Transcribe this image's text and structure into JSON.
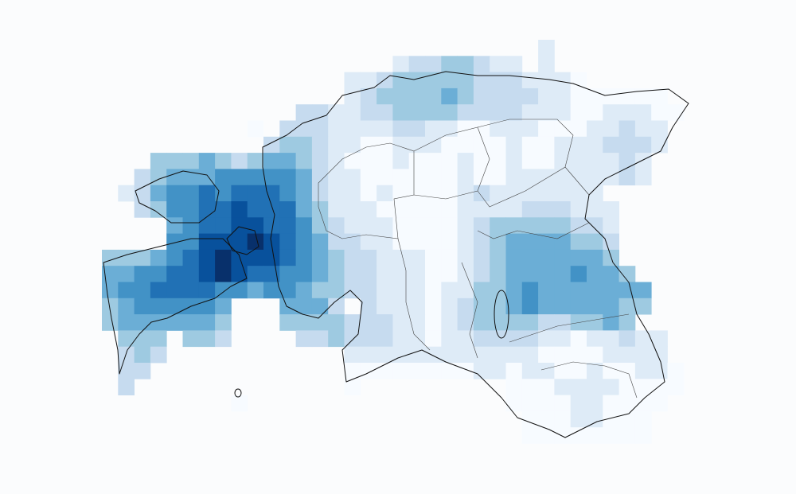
{
  "map": {
    "colors": [
      "#f7fbff",
      "#deebf7",
      "#c6dbef",
      "#9ecae1",
      "#6baed6",
      "#4292c6",
      "#2171b5",
      "#08519c",
      "#08306b"
    ],
    "cells": [
      [
        null,
        null,
        null,
        null,
        null,
        null,
        null,
        null,
        null,
        null,
        null,
        null,
        null,
        null,
        null,
        null,
        null,
        null,
        null,
        null,
        null,
        null,
        null,
        null,
        null,
        null,
        null,
        1
      ],
      [
        null,
        null,
        null,
        null,
        null,
        null,
        null,
        null,
        null,
        null,
        null,
        null,
        null,
        null,
        null,
        null,
        null,
        null,
        1,
        2,
        2,
        3,
        3,
        2,
        1,
        1,
        null,
        1
      ],
      [
        null,
        null,
        null,
        null,
        null,
        null,
        null,
        null,
        null,
        null,
        null,
        null,
        null,
        null,
        null,
        1,
        1,
        2,
        3,
        3,
        3,
        3,
        3,
        2,
        2,
        2,
        1,
        1,
        1,
        0
      ],
      [
        null,
        null,
        null,
        null,
        null,
        null,
        null,
        null,
        null,
        null,
        null,
        null,
        null,
        null,
        null,
        1,
        2,
        3,
        3,
        3,
        3,
        4,
        3,
        2,
        2,
        2,
        2,
        1,
        1,
        0,
        0,
        0,
        0,
        0,
        0
      ],
      [
        null,
        null,
        null,
        null,
        null,
        null,
        null,
        null,
        null,
        null,
        null,
        null,
        2,
        2,
        1,
        1,
        2,
        2,
        3,
        3,
        3,
        3,
        2,
        2,
        2,
        2,
        1,
        1,
        1,
        0,
        0,
        1,
        1,
        1,
        0,
        0
      ],
      [
        null,
        null,
        null,
        null,
        null,
        null,
        null,
        null,
        null,
        0,
        null,
        2,
        2,
        2,
        1,
        1,
        1,
        1,
        2,
        2,
        1,
        1,
        0,
        0,
        1,
        1,
        1,
        0,
        0,
        0,
        1,
        1,
        2,
        1,
        1
      ],
      [
        null,
        null,
        null,
        null,
        null,
        null,
        null,
        null,
        null,
        null,
        2,
        3,
        3,
        2,
        1,
        1,
        0,
        0,
        1,
        1,
        1,
        0,
        0,
        0,
        0,
        1,
        0,
        0,
        1,
        1,
        1,
        2,
        2,
        2,
        1
      ],
      [
        null,
        null,
        null,
        3,
        3,
        3,
        4,
        3,
        2,
        3,
        4,
        4,
        3,
        2,
        1,
        0,
        0,
        0,
        1,
        0,
        0,
        0,
        1,
        0,
        0,
        1,
        0,
        0,
        1,
        1,
        1,
        1,
        2,
        1
      ],
      [
        null,
        null,
        2,
        3,
        4,
        4,
        4,
        5,
        5,
        5,
        5,
        5,
        4,
        2,
        1,
        1,
        0,
        0,
        0,
        0,
        0,
        0,
        1,
        0,
        0,
        1,
        1,
        1,
        1,
        1,
        1,
        1,
        2,
        1
      ],
      [
        null,
        1,
        2,
        4,
        5,
        5,
        6,
        5,
        6,
        6,
        6,
        5,
        4,
        2,
        1,
        1,
        0,
        1,
        0,
        0,
        0,
        0,
        1,
        2,
        1,
        1,
        1,
        1,
        1,
        1,
        1
      ],
      [
        null,
        null,
        2,
        3,
        5,
        5,
        6,
        6,
        7,
        6,
        6,
        6,
        4,
        3,
        1,
        1,
        1,
        0,
        0,
        0,
        0,
        0,
        1,
        1,
        1,
        1,
        2,
        2,
        2,
        1,
        1,
        1
      ],
      [
        null,
        null,
        null,
        null,
        4,
        5,
        6,
        6,
        7,
        7,
        6,
        6,
        5,
        3,
        2,
        1,
        1,
        1,
        0,
        0,
        0,
        0,
        1,
        2,
        3,
        3,
        3,
        3,
        3,
        2,
        2,
        1
      ],
      [
        null,
        null,
        null,
        null,
        5,
        5,
        7,
        7,
        7,
        8,
        7,
        6,
        5,
        4,
        2,
        2,
        1,
        1,
        0,
        0,
        0,
        0,
        1,
        2,
        3,
        4,
        4,
        4,
        4,
        3,
        3,
        2
      ],
      [
        3,
        3,
        3,
        4,
        5,
        6,
        7,
        8,
        7,
        7,
        7,
        6,
        5,
        4,
        3,
        2,
        2,
        1,
        1,
        1,
        0,
        0,
        1,
        2,
        3,
        4,
        4,
        4,
        4,
        4,
        4,
        3
      ],
      [
        4,
        4,
        5,
        5,
        6,
        6,
        7,
        8,
        7,
        6,
        6,
        5,
        5,
        4,
        3,
        2,
        2,
        1,
        1,
        1,
        0,
        0,
        1,
        2,
        3,
        4,
        4,
        4,
        4,
        5,
        4,
        4,
        3
      ],
      [
        4,
        5,
        5,
        6,
        6,
        6,
        6,
        5,
        5,
        4,
        5,
        5,
        4,
        3,
        3,
        2,
        2,
        1,
        1,
        1,
        0,
        1,
        1,
        3,
        3,
        4,
        5,
        4,
        4,
        4,
        4,
        4,
        4,
        4
      ],
      [
        3,
        4,
        5,
        5,
        5,
        5,
        5,
        4,
        null,
        null,
        null,
        4,
        4,
        4,
        2,
        null,
        2,
        1,
        1,
        1,
        0,
        1,
        2,
        3,
        3,
        4,
        5,
        4,
        4,
        4,
        4,
        4,
        3,
        3
      ],
      [
        3,
        4,
        4,
        4,
        4,
        4,
        4,
        3,
        null,
        null,
        null,
        3,
        3,
        3,
        3,
        2,
        2,
        2,
        1,
        1,
        0,
        1,
        2,
        3,
        3,
        3,
        3,
        2,
        2,
        3,
        3,
        4,
        3
      ],
      [
        null,
        3,
        3,
        3,
        null,
        3,
        3,
        2,
        null,
        null,
        null,
        null,
        2,
        2,
        3,
        2,
        2,
        2,
        1,
        1,
        0,
        1,
        1,
        2,
        2,
        2,
        2,
        1,
        1,
        0,
        1,
        1,
        2,
        1,
        1
      ],
      [
        null,
        2,
        3,
        2,
        null,
        null,
        null,
        null,
        null,
        null,
        null,
        null,
        null,
        null,
        null,
        1,
        1,
        1,
        1,
        1,
        1,
        1,
        1,
        1,
        1,
        1,
        1,
        0,
        0,
        0,
        0,
        1,
        1,
        1,
        1
      ],
      [
        null,
        2,
        2,
        null,
        null,
        null,
        null,
        null,
        null,
        null,
        null,
        null,
        null,
        null,
        null,
        0,
        0,
        0,
        0,
        0,
        0,
        0,
        0,
        1,
        1,
        0,
        1,
        1,
        0,
        0,
        1,
        0,
        0,
        1,
        1,
        0
      ],
      [
        null,
        2,
        null,
        null,
        null,
        null,
        null,
        null,
        null,
        null,
        null,
        null,
        null,
        null,
        null,
        0,
        null,
        null,
        null,
        null,
        null,
        null,
        null,
        null,
        null,
        0,
        0,
        0,
        1,
        1,
        1,
        1,
        0,
        0,
        0,
        0
      ],
      [
        null,
        null,
        null,
        null,
        null,
        null,
        null,
        null,
        0,
        null,
        null,
        null,
        null,
        null,
        null,
        null,
        null,
        null,
        null,
        null,
        null,
        null,
        null,
        null,
        null,
        0,
        0,
        0,
        0,
        1,
        1,
        0,
        0,
        0,
        0
      ],
      [
        null,
        null,
        null,
        null,
        null,
        null,
        null,
        null,
        null,
        null,
        null,
        null,
        null,
        null,
        null,
        null,
        null,
        null,
        null,
        null,
        null,
        null,
        null,
        null,
        null,
        null,
        0,
        0,
        0,
        1,
        1,
        0,
        0,
        0
      ],
      [
        null,
        null,
        null,
        null,
        null,
        null,
        null,
        null,
        null,
        null,
        null,
        null,
        null,
        null,
        null,
        null,
        null,
        null,
        null,
        null,
        null,
        null,
        null,
        null,
        null,
        null,
        0,
        0,
        0,
        0,
        0,
        0,
        0,
        0
      ]
    ]
  }
}
